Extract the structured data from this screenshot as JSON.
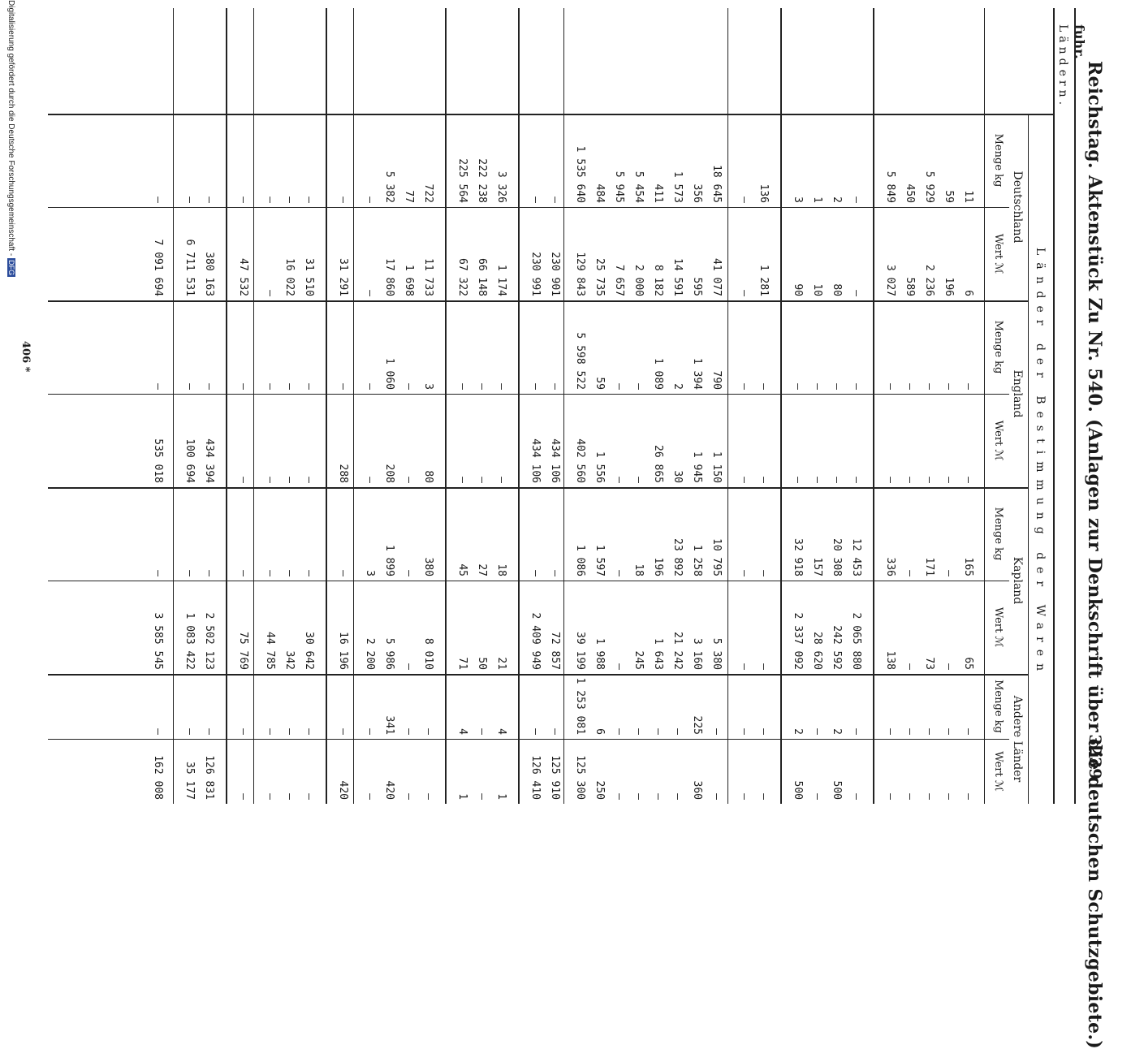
{
  "header": {
    "title": "Reichstag. Aktenstück Zu Nr. 540. (Anlagen zur Denkschrift über die deutschen Schutzgebiete.)",
    "page_number": "3239",
    "fuhr": "fuhr.",
    "laendern": "Ländern."
  },
  "table": {
    "span_header": "Länder der Bestimmung der Waren",
    "groups": [
      "Deutschland",
      "England",
      "Kapland",
      "Andere Länder"
    ],
    "sub_menge": "Menge kg",
    "sub_wert": "Wert ℳ",
    "rows": [
      [
        "11",
        "6",
        "—",
        "—",
        "165",
        "65",
        "—",
        "—"
      ],
      [
        "59",
        "196",
        "—",
        "—",
        "—",
        "—",
        "—",
        "—"
      ],
      [
        "5 929",
        "2 236",
        "—",
        "—",
        "171",
        "73",
        "—",
        "—"
      ],
      [
        "450",
        "589",
        "—",
        "—",
        "—",
        "—",
        "—",
        "—"
      ],
      [
        "5 849",
        "3 027",
        "—",
        "—",
        "336",
        "138",
        "—",
        "—"
      ],
      [
        "—",
        "—",
        "—",
        "—",
        "12 453",
        "2 065 880",
        "—",
        "—"
      ],
      [
        "2",
        "80",
        "—",
        "—",
        "20 308",
        "242 592",
        "2",
        "500"
      ],
      [
        "1",
        "10",
        "—",
        "—",
        "157",
        "28 620",
        "—",
        "—"
      ],
      [
        "3",
        "90",
        "—",
        "—",
        "32 918",
        "2 337 092",
        "2",
        "500"
      ],
      [
        "136",
        "1 281",
        "—",
        "—",
        "—",
        "—",
        "—",
        "—"
      ],
      [
        "—",
        "—",
        "—",
        "—",
        "—",
        "—",
        "—",
        "—"
      ],
      [
        "18 645",
        "41 077",
        "790",
        "1 150",
        "10 795",
        "5 380",
        "—",
        "—"
      ],
      [
        "356",
        "595",
        "1 394",
        "1 945",
        "1 258",
        "3 160",
        "225",
        "360"
      ],
      [
        "1 573",
        "14 591",
        "2",
        "30",
        "23 892",
        "21 242",
        "—",
        "—"
      ],
      [
        "411",
        "8 182",
        "1 089",
        "26 865",
        "196",
        "1 643",
        "—",
        "—"
      ],
      [
        "5 454",
        "2 000",
        "—",
        "—",
        "18",
        "245",
        "—",
        "—"
      ],
      [
        "5 945",
        "7 657",
        "—",
        "—",
        "—",
        "—",
        "—",
        "—"
      ],
      [
        "484",
        "25 735",
        "59",
        "1 556",
        "1 597",
        "1 988",
        "6",
        "250"
      ],
      [
        "1 535 640",
        "129 843",
        "5 598 522",
        "402 560",
        "1 086",
        "39 199",
        "1 253 081",
        "125 300"
      ],
      [
        "—",
        "230 901",
        "—",
        "434 106",
        "—",
        "72 857",
        "—",
        "125 910"
      ],
      [
        "—",
        "230 991",
        "—",
        "434 106",
        "—",
        "2 409 949",
        "—",
        "126 410"
      ],
      [
        "3 326",
        "1 174",
        "—",
        "—",
        "18",
        "21",
        "4",
        "1"
      ],
      [
        "222 238",
        "66 148",
        "—",
        "—",
        "27",
        "50",
        "—",
        "—"
      ],
      [
        "225 564",
        "67 322",
        "—",
        "—",
        "45",
        "71",
        "4",
        "1"
      ],
      [
        "722",
        "11 733",
        "3",
        "80",
        "380",
        "8 010",
        "—",
        "—"
      ],
      [
        "77",
        "1 698",
        "—",
        "—",
        "—",
        "—",
        "—",
        "—"
      ],
      [
        "5 382",
        "17 860",
        "1 060",
        "208",
        "1 899",
        "5 986",
        "341",
        "420"
      ],
      [
        "—",
        "—",
        "—",
        "—",
        "3",
        "2 200",
        "—",
        "—"
      ],
      [
        "—",
        "31 291",
        "—",
        "288",
        "—",
        "16 196",
        "—",
        "420"
      ],
      [
        "—",
        "31 510",
        "—",
        "—",
        "—",
        "30 642",
        "—",
        "—"
      ],
      [
        "—",
        "16 022",
        "—",
        "—",
        "—",
        "342",
        "—",
        "—"
      ],
      [
        "—",
        "—",
        "—",
        "—",
        "—",
        "44 785",
        "—",
        "—"
      ],
      [
        "—",
        "47 532",
        "—",
        "—",
        "—",
        "75 769",
        "—",
        "—"
      ],
      [
        "—",
        "380 163",
        "—",
        "434 394",
        "—",
        "2 502 123",
        "—",
        "126 831"
      ],
      [
        "—",
        "6 711 531",
        "—",
        "100 694",
        "—",
        "1 083 422",
        "—",
        "35 177"
      ],
      [
        "—",
        "7 091 694",
        "—",
        "535 018",
        "—",
        "3 585 545",
        "—",
        "162 008"
      ]
    ]
  },
  "footer": {
    "page": "406 *",
    "digitization": "Digitalisierung gefördert durch die Deutsche Forschungsgemeinschaft -",
    "logo": "DFG"
  }
}
